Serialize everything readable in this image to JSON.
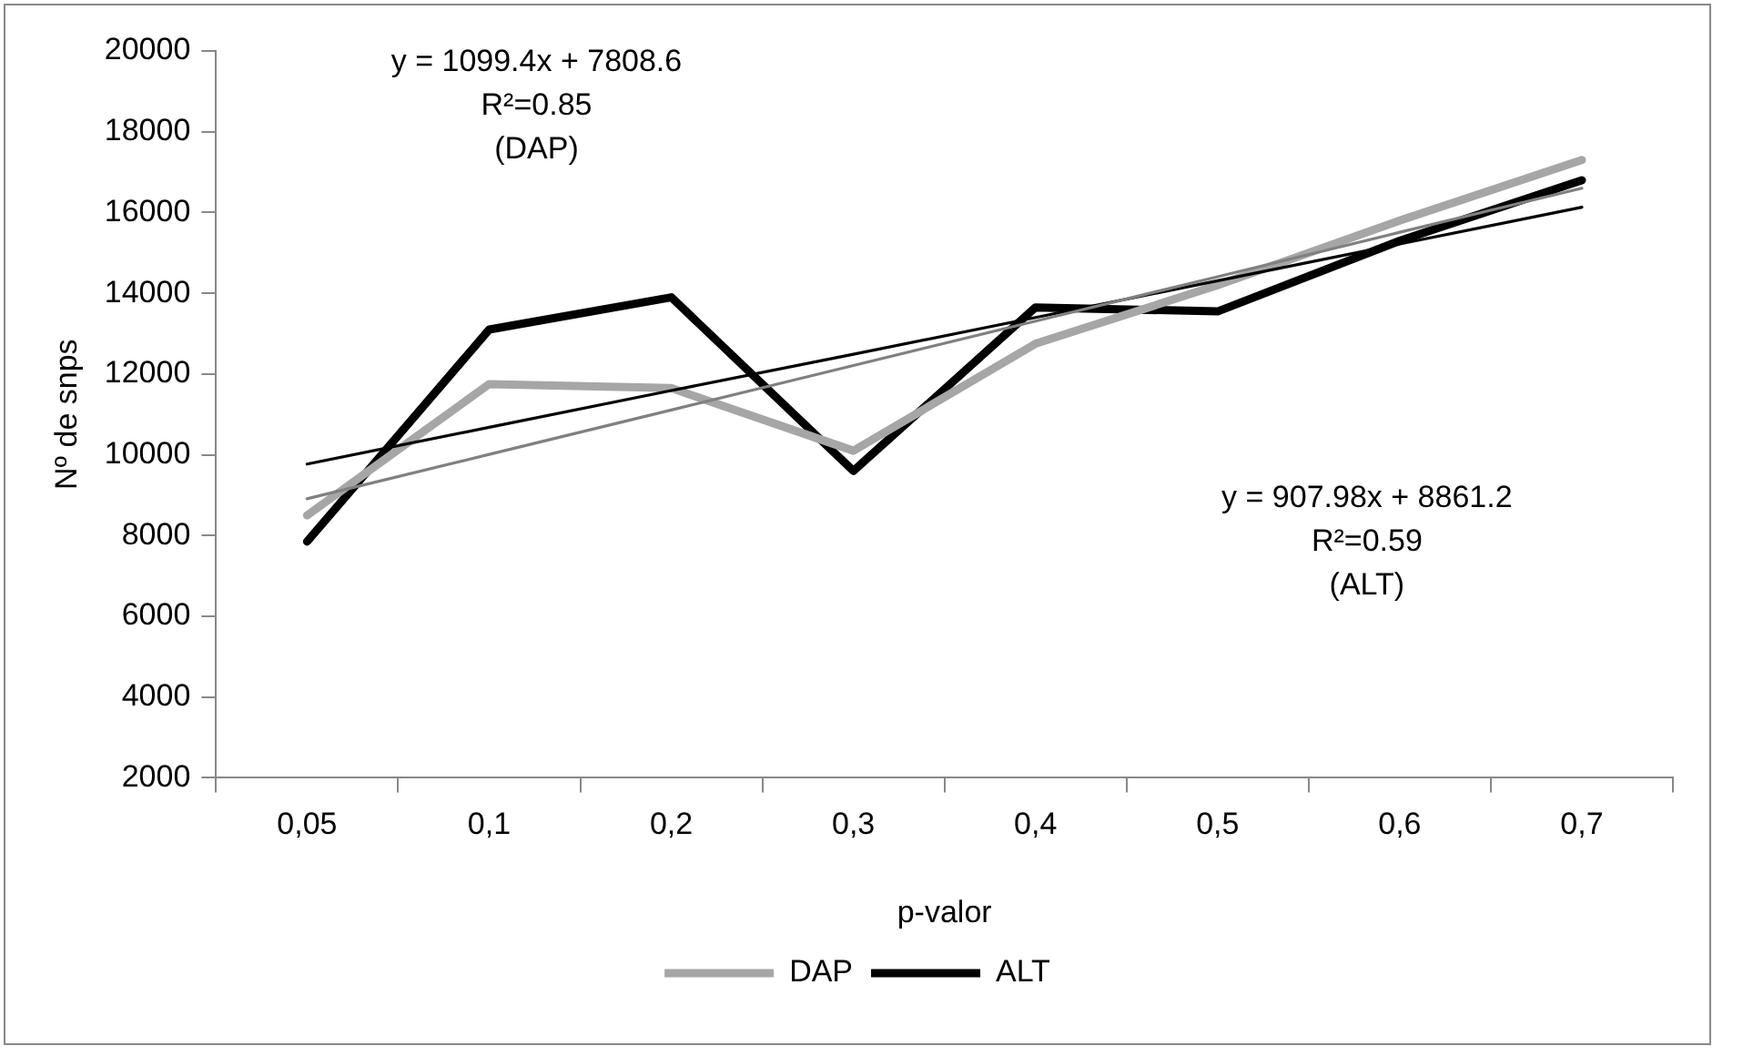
{
  "chart_data": {
    "type": "line",
    "xlabel": "p-valor",
    "ylabel": "Nº de snps",
    "categories": [
      "0,05",
      "0,1",
      "0,2",
      "0,3",
      "0,4",
      "0,5",
      "0,6",
      "0,7"
    ],
    "series": [
      {
        "name": "DAP",
        "color": "#a6a6a6",
        "values": [
          8500,
          11750,
          11650,
          10100,
          12750,
          14200,
          15800,
          17300
        ]
      },
      {
        "name": "ALT",
        "color": "#000000",
        "values": [
          7850,
          13100,
          13900,
          9600,
          13650,
          13550,
          15300,
          16800
        ]
      },
      {
        "color": "#808080",
        "values": [
          8910,
          10010,
          11110,
          12210,
          13310,
          14410,
          15510,
          16600
        ]
      },
      {
        "color": "#000000",
        "values": [
          9770,
          10680,
          11590,
          12490,
          13400,
          14310,
          15220,
          16130
        ]
      }
    ],
    "ylim": [
      2000,
      20000
    ],
    "yticks": [
      2000,
      4000,
      6000,
      8000,
      10000,
      12000,
      14000,
      16000,
      18000,
      20000
    ],
    "grid": false,
    "legend": "bottom",
    "marker": "none",
    "line_style": "solid",
    "annotations": [
      "y = 1099.4x + 7808.6\nR²=0.85\n(DAP)",
      "y = 907.98x + 8861.2\nR²=0.59\n(ALT)"
    ]
  }
}
